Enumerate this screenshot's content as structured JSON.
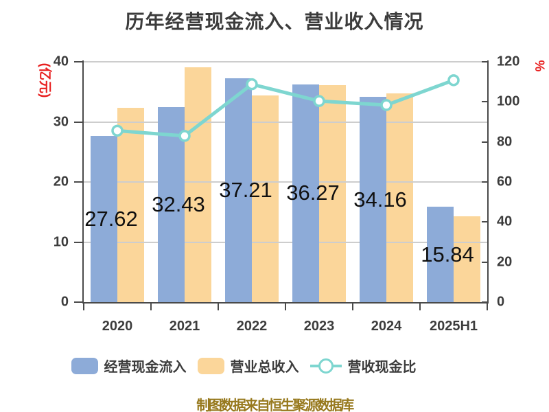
{
  "title": "历年经营现金流入、营业收入情况",
  "footer_note": "制图数据来自恒生聚源数据库",
  "colors": {
    "cash_bar": "#8dabd8",
    "revenue_bar": "#fbd69a",
    "ratio_line": "#7ed6d0",
    "axis_unit_red": "#e82020",
    "axis_line": "#4a4a4a",
    "grid_line": "#cdcdcd",
    "footer_gold": "#97791d"
  },
  "left_axis": {
    "unit": "(亿元)",
    "ticks": [
      40,
      30,
      20,
      10,
      0
    ],
    "min": 0,
    "max": 40
  },
  "right_axis": {
    "unit": "%",
    "ticks": [
      120,
      100,
      80,
      60,
      40,
      20,
      0
    ],
    "min": 0,
    "max": 120
  },
  "chart_data": {
    "type": "bar+line combo",
    "title": "历年经营现金流入、营业收入情况",
    "categories": [
      "2020",
      "2021",
      "2022",
      "2023",
      "2024",
      "2025H1"
    ],
    "series": [
      {
        "name": "经营现金流入",
        "type": "bar",
        "axis": "left",
        "color": "#8dabd8",
        "values": [
          27.62,
          32.43,
          37.21,
          36.27,
          34.16,
          15.84
        ],
        "data_labels": [
          "27.62",
          "32.43",
          "37.21",
          "36.27",
          "34.16",
          "15.84"
        ]
      },
      {
        "name": "营业总收入",
        "type": "bar",
        "axis": "left",
        "color": "#fbd69a",
        "values": [
          32.3,
          39.1,
          34.4,
          36.1,
          34.8,
          14.3
        ]
      },
      {
        "name": "营收现金比",
        "type": "line",
        "axis": "right",
        "color": "#7ed6d0",
        "marker": "white-filled-circle",
        "values": [
          85.6,
          83.0,
          108.8,
          100.4,
          98.4,
          110.8
        ]
      }
    ],
    "left_ylim": [
      0,
      40
    ],
    "right_ylim": [
      0,
      120
    ],
    "legend_position": "bottom",
    "grid": "horizontal gridlines at left-axis ticks 10/20/30/40; drawn above revenue bars, below cash-inflow bars"
  }
}
